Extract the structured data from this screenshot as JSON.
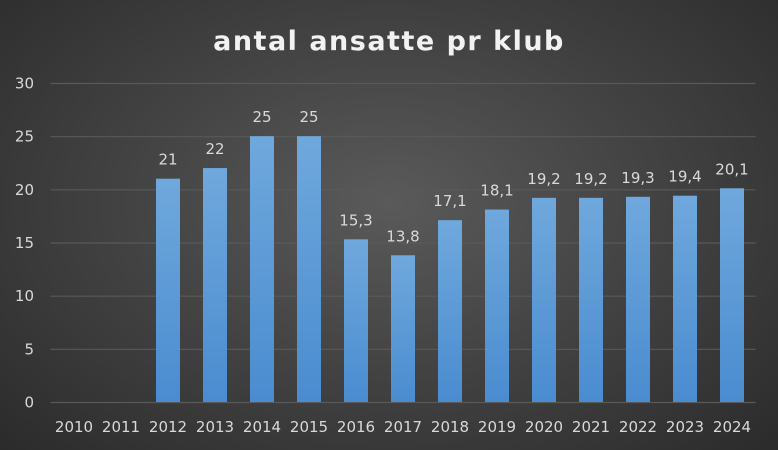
{
  "chart_data": {
    "type": "bar",
    "title": "antal ansatte pr klub",
    "xlabel": "",
    "ylabel": "",
    "categories": [
      "2010",
      "2011",
      "2012",
      "2013",
      "2014",
      "2015",
      "2016",
      "2017",
      "2018",
      "2019",
      "2020",
      "2021",
      "2022",
      "2023",
      "2024"
    ],
    "values": [
      null,
      null,
      21,
      22,
      25,
      25,
      15.3,
      13.8,
      17.1,
      18.1,
      19.2,
      19.2,
      19.3,
      19.4,
      20.1
    ],
    "data_labels": [
      "",
      "",
      "21",
      "22",
      "25",
      "25",
      "15,3",
      "13,8",
      "17,1",
      "18,1",
      "19,2",
      "19,2",
      "19,3",
      "19,4",
      "20,1"
    ],
    "ylim": [
      0,
      30
    ],
    "yticks": [
      "0",
      "5",
      "10",
      "15",
      "20",
      "25",
      "30"
    ],
    "grid": true,
    "legend": "none",
    "colors": {
      "bar": "#5b9bd5",
      "background": "#404040",
      "grid": "#595959",
      "text": "#d9d9d9"
    }
  }
}
